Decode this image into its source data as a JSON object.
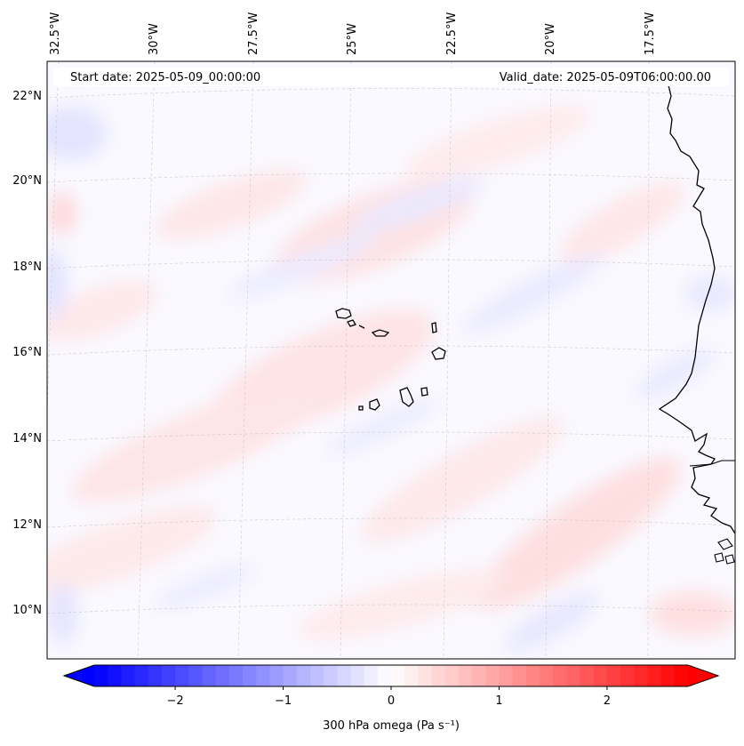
{
  "header": {
    "start_date": "Start date: 2025-05-09_00:00:00",
    "valid_date": "Valid_date: 2025-05-09T06:00:00.00"
  },
  "map": {
    "longitude_labels": [
      "32.5°W",
      "30°W",
      "27.5°W",
      "25°W",
      "22.5°W",
      "20°W",
      "17.5°W"
    ],
    "latitude_labels": [
      "22°N",
      "20°N",
      "18°N",
      "16°N",
      "14°N",
      "12°N",
      "10°N"
    ],
    "gridlines": true,
    "coastline_color": "#000000"
  },
  "colorbar": {
    "label": "300 hPa omega (Pa s⁻¹)",
    "ticks": [
      "−2",
      "−1",
      "0",
      "1",
      "2"
    ],
    "tick_values": [
      -2,
      -1,
      0,
      1,
      2
    ],
    "range": [
      -2.75,
      2.75
    ],
    "colormap": "bwr",
    "extend": "both",
    "low_color": "#0000ff",
    "mid_color": "#ffffff",
    "high_color": "#ff0000"
  }
}
